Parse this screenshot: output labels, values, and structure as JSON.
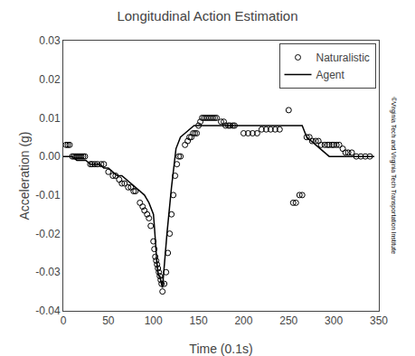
{
  "chart_data": {
    "type": "scatter",
    "title": "Longitudinal Action Estimation",
    "x_label": "Time (0.1s)",
    "y_label": "Acceleration (g)",
    "xlim": [
      0,
      350
    ],
    "ylim": [
      -0.04,
      0.03
    ],
    "xticks": [
      0,
      50,
      100,
      150,
      200,
      250,
      300,
      350
    ],
    "yticks": [
      -0.04,
      -0.03,
      -0.02,
      -0.01,
      {
        "value": 0,
        "label": "0.00"
      },
      0.01,
      0.02,
      0.03
    ],
    "grid": false,
    "legend": "upper right",
    "annotations": [
      "©Virginia Tech and Virginia Tech Transportation Institute"
    ],
    "series": [
      {
        "name": "Naturalistic",
        "type": "scatter",
        "marker": "open_circle",
        "color": "#000000",
        "x": [
          3,
          5,
          7,
          10,
          12,
          14,
          16,
          18,
          20,
          22,
          24,
          30,
          32,
          35,
          38,
          42,
          45,
          50,
          55,
          58,
          62,
          65,
          68,
          72,
          75,
          78,
          80,
          85,
          88,
          90,
          93,
          95,
          97,
          100,
          101,
          102,
          103,
          104,
          105,
          106,
          107,
          108,
          109,
          110,
          112,
          114,
          116,
          118,
          120,
          122,
          124,
          126,
          128,
          130,
          135,
          138,
          140,
          142,
          144,
          146,
          148,
          150,
          152,
          154,
          156,
          158,
          160,
          162,
          164,
          166,
          168,
          170,
          175,
          178,
          180,
          183,
          185,
          188,
          190,
          200,
          205,
          210,
          215,
          220,
          225,
          230,
          235,
          240,
          250,
          255,
          258,
          262,
          265,
          270,
          273,
          276,
          280,
          283,
          286,
          290,
          293,
          295,
          298,
          300,
          303,
          306,
          310,
          313,
          316,
          320,
          325,
          330,
          335,
          340
        ],
        "values": [
          0.003,
          0.003,
          0.003,
          0.0,
          0.0,
          0.0,
          0.0,
          0.0,
          0.0,
          0.0,
          0.0,
          -0.002,
          -0.002,
          -0.002,
          -0.002,
          -0.002,
          -0.002,
          -0.004,
          -0.005,
          -0.005,
          -0.006,
          -0.007,
          -0.007,
          -0.008,
          -0.008,
          -0.009,
          -0.009,
          -0.012,
          -0.013,
          -0.014,
          -0.015,
          -0.016,
          -0.018,
          -0.022,
          -0.024,
          -0.026,
          -0.027,
          -0.028,
          -0.029,
          -0.03,
          -0.031,
          -0.032,
          -0.033,
          -0.035,
          -0.033,
          -0.03,
          -0.025,
          -0.02,
          -0.015,
          -0.01,
          -0.005,
          -0.002,
          0.0,
          0.0,
          0.003,
          0.004,
          0.005,
          0.005,
          0.006,
          0.006,
          0.006,
          0.008,
          0.009,
          0.01,
          0.01,
          0.01,
          0.01,
          0.01,
          0.01,
          0.01,
          0.01,
          0.01,
          0.009,
          0.009,
          0.008,
          0.008,
          0.008,
          0.008,
          0.008,
          0.006,
          0.006,
          0.006,
          0.006,
          0.007,
          0.007,
          0.007,
          0.007,
          0.007,
          0.012,
          -0.012,
          -0.012,
          -0.01,
          -0.01,
          0.005,
          0.005,
          0.004,
          0.004,
          0.004,
          0.003,
          0.003,
          0.003,
          0.003,
          0.003,
          0.003,
          0.003,
          0.003,
          0.002,
          0.001,
          0.001,
          0.001,
          0.0,
          0.0,
          0.0,
          0.0
        ]
      },
      {
        "name": "Agent",
        "type": "line",
        "line_style": "solid",
        "color": "#000000",
        "x": [
          0,
          5,
          10,
          15,
          20,
          25,
          30,
          35,
          40,
          45,
          50,
          55,
          60,
          65,
          70,
          75,
          80,
          85,
          90,
          95,
          100,
          101,
          102,
          103,
          104,
          105,
          106,
          107,
          108,
          109,
          110,
          115,
          120,
          125,
          130,
          135,
          140,
          145,
          150,
          155,
          160,
          165,
          170,
          175,
          180,
          185,
          190,
          195,
          200,
          205,
          210,
          215,
          220,
          225,
          230,
          235,
          240,
          245,
          250,
          255,
          260,
          265,
          270,
          275,
          280,
          285,
          290,
          295,
          300,
          305,
          310,
          315,
          320,
          325,
          330,
          335,
          340,
          345
        ],
        "values": [
          0.0,
          0.0,
          0.0,
          -0.001,
          -0.001,
          -0.001,
          -0.002,
          -0.002,
          -0.002,
          -0.003,
          -0.003,
          -0.004,
          -0.005,
          -0.005,
          -0.006,
          -0.007,
          -0.008,
          -0.009,
          -0.01,
          -0.012,
          -0.015,
          -0.018,
          -0.022,
          -0.025,
          -0.028,
          -0.03,
          -0.031,
          -0.031,
          -0.032,
          -0.033,
          -0.034,
          -0.02,
          -0.008,
          0.002,
          0.005,
          0.006,
          0.007,
          0.008,
          0.008,
          0.008,
          0.008,
          0.008,
          0.008,
          0.008,
          0.008,
          0.008,
          0.008,
          0.008,
          0.008,
          0.008,
          0.008,
          0.008,
          0.008,
          0.008,
          0.008,
          0.008,
          0.008,
          0.008,
          0.008,
          0.008,
          0.008,
          0.008,
          0.005,
          0.004,
          0.003,
          0.002,
          0.001,
          0.0,
          0.0,
          0.0,
          0.0,
          0.0,
          0.0,
          0.0,
          0.0,
          0.0,
          0.0,
          0.0
        ]
      }
    ]
  }
}
